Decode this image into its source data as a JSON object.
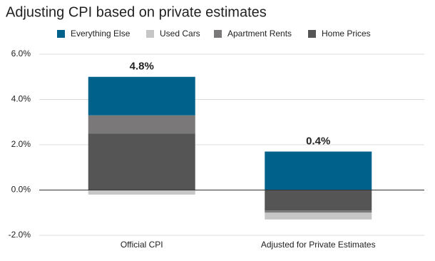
{
  "chart_data": {
    "type": "stacked-bar",
    "title": "Adjusting CPI based on private estimates",
    "categories": [
      "Official CPI",
      "Adjusted for Private Estimates"
    ],
    "series": [
      {
        "name": "Everything Else",
        "color": "#00628b",
        "values": [
          1.7,
          1.7
        ]
      },
      {
        "name": "Used Cars",
        "color": "#c6c6c6",
        "values": [
          -0.2,
          -0.3
        ]
      },
      {
        "name": "Apartment Rents",
        "color": "#7a7878",
        "values": [
          0.8,
          -0.1
        ]
      },
      {
        "name": "Home Prices",
        "color": "#555555",
        "values": [
          2.5,
          -0.9
        ]
      }
    ],
    "totals": [
      4.8,
      0.4
    ],
    "total_labels": [
      "4.8%",
      "0.4%"
    ],
    "ylim": [
      -2,
      6
    ],
    "yticks": [
      {
        "value": -2,
        "label": "-2.0%"
      },
      {
        "value": 0,
        "label": "0.0%"
      },
      {
        "value": 2,
        "label": "2.0%"
      },
      {
        "value": 4,
        "label": "4.0%"
      },
      {
        "value": 6,
        "label": "6.0%"
      }
    ],
    "grid": true,
    "legend": "top"
  }
}
